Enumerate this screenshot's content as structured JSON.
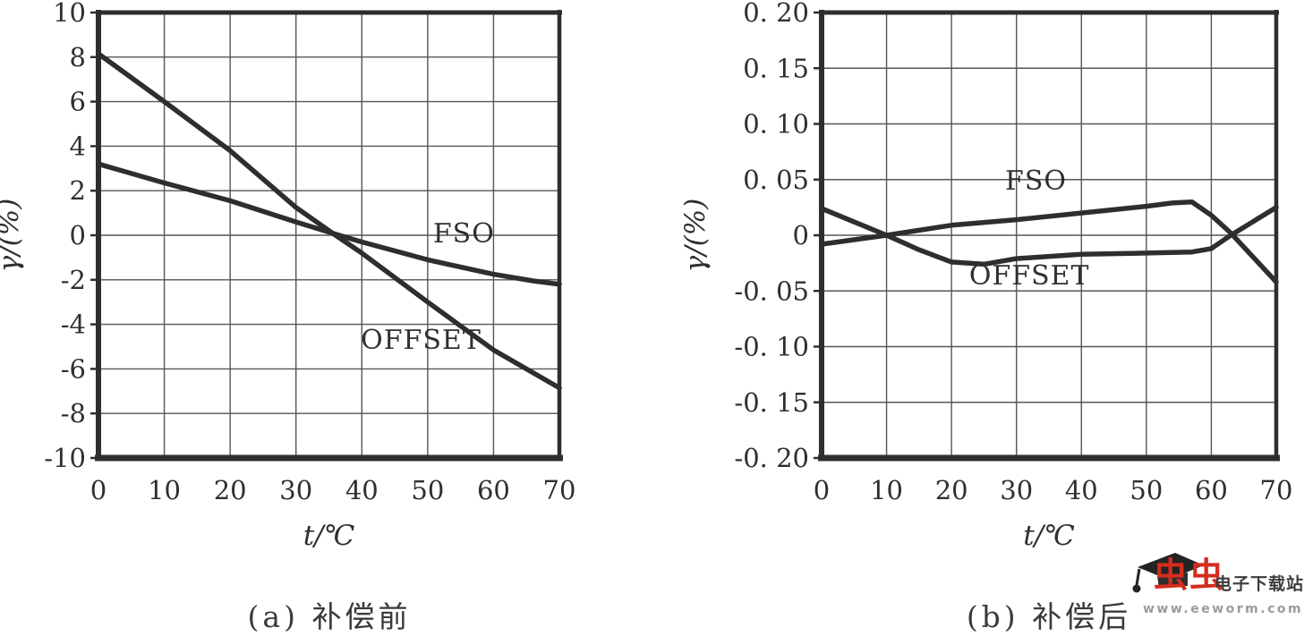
{
  "colors": {
    "ink": "#2e2e2e",
    "grid": "#555555",
    "paper": "#ffffff",
    "brand_red": "#d62c1e"
  },
  "chart_data": [
    {
      "id": "before",
      "type": "line",
      "caption": "(a) 补偿前",
      "xlabel": "t/℃",
      "ylabel": "γ/(%)",
      "xlim": [
        0,
        70
      ],
      "ylim": [
        -10,
        10
      ],
      "grid": true,
      "xticks": {
        "values": [
          0,
          10,
          20,
          30,
          40,
          50,
          60,
          70
        ],
        "labels": [
          "0",
          "10",
          "20",
          "30",
          "40",
          "50",
          "60",
          "70"
        ]
      },
      "yticks": {
        "values": [
          10,
          8,
          6,
          4,
          2,
          0,
          -2,
          -4,
          -6,
          -8,
          -10
        ],
        "labels": [
          "10",
          "8",
          "6",
          "4",
          "2",
          "0",
          "-2",
          "-4",
          "-6",
          "-8",
          "-10"
        ]
      },
      "series": [
        {
          "name": "FSO",
          "label": "FSO",
          "label_pos": [
            55.5,
            -0.32
          ],
          "points": [
            [
              0,
              3.2
            ],
            [
              10,
              2.35
            ],
            [
              20,
              1.55
            ],
            [
              30,
              0.6
            ],
            [
              36,
              0.05
            ],
            [
              40,
              -0.3
            ],
            [
              50,
              -1.1
            ],
            [
              60,
              -1.75
            ],
            [
              66,
              -2.05
            ],
            [
              70,
              -2.2
            ]
          ]
        },
        {
          "name": "OFFSET",
          "label": "OFFSET",
          "label_pos": [
            49,
            -5.1
          ],
          "points": [
            [
              0,
              8.15
            ],
            [
              10,
              6.0
            ],
            [
              20,
              3.8
            ],
            [
              30,
              1.25
            ],
            [
              36,
              0
            ],
            [
              40,
              -0.8
            ],
            [
              50,
              -3.0
            ],
            [
              60,
              -5.15
            ],
            [
              70,
              -6.85
            ]
          ]
        }
      ]
    },
    {
      "id": "after",
      "type": "line",
      "caption": "(b) 补偿后",
      "xlabel": "t/℃",
      "ylabel": "γ/(%)",
      "xlim": [
        0,
        70
      ],
      "ylim": [
        -0.2,
        0.2
      ],
      "grid": true,
      "xticks": {
        "values": [
          0,
          10,
          20,
          30,
          40,
          50,
          60,
          70
        ],
        "labels": [
          "0",
          "10",
          "20",
          "30",
          "40",
          "50",
          "60",
          "70"
        ]
      },
      "yticks": {
        "values": [
          0.2,
          0.15,
          0.1,
          0.05,
          0,
          -0.05,
          -0.1,
          -0.15,
          -0.2
        ],
        "labels": [
          "0. 20",
          "0. 15",
          "0. 10",
          "0. 05",
          "0",
          "-0. 05",
          "-0. 10",
          "-0. 15",
          "-0. 20"
        ]
      },
      "series": [
        {
          "name": "FSO",
          "label": "FSO",
          "label_pos": [
            33,
            0.041
          ],
          "points": [
            [
              0,
              -0.008
            ],
            [
              10,
              0
            ],
            [
              20,
              0.009
            ],
            [
              30,
              0.014
            ],
            [
              40,
              0.02
            ],
            [
              50,
              0.026
            ],
            [
              54,
              0.029
            ],
            [
              57,
              0.03
            ],
            [
              60,
              0.018
            ],
            [
              63,
              0.002
            ],
            [
              70,
              -0.042
            ]
          ]
        },
        {
          "name": "OFFSET",
          "label": "OFFSET",
          "label_pos": [
            32,
            -0.044
          ],
          "points": [
            [
              0,
              0.024
            ],
            [
              10,
              0
            ],
            [
              15,
              -0.013
            ],
            [
              20,
              -0.024
            ],
            [
              25,
              -0.026
            ],
            [
              30,
              -0.021
            ],
            [
              40,
              -0.017
            ],
            [
              50,
              -0.016
            ],
            [
              57,
              -0.015
            ],
            [
              60,
              -0.012
            ],
            [
              63,
              0
            ],
            [
              70,
              0.025
            ]
          ]
        }
      ]
    }
  ],
  "watermark": {
    "icon": "graduation-cap-icon",
    "brand": "虫虫",
    "site_name": "电子下载站",
    "url": "www.eeworm.com"
  }
}
